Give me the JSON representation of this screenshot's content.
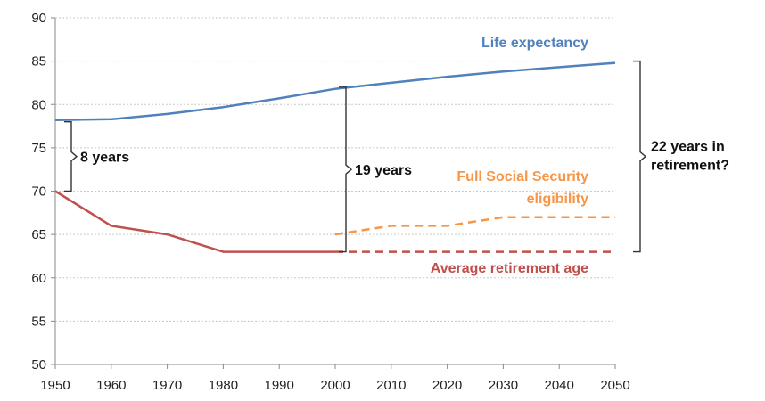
{
  "chart_data": {
    "type": "line",
    "title": "",
    "xlabel": "",
    "ylabel": "",
    "xlim": [
      1950,
      2050
    ],
    "ylim": [
      50,
      90
    ],
    "x_ticks": [
      1950,
      1960,
      1970,
      1980,
      1990,
      2000,
      2010,
      2020,
      2030,
      2040,
      2050
    ],
    "y_ticks": [
      50,
      55,
      60,
      65,
      70,
      75,
      80,
      85,
      90
    ],
    "grid": "horizontal dashed",
    "series": [
      {
        "name": "Life expectancy",
        "color": "#4f81bd",
        "style": "solid",
        "x": [
          1950,
          1960,
          1970,
          1980,
          1990,
          2000,
          2010,
          2020,
          2030,
          2040,
          2050
        ],
        "y": [
          78.2,
          78.3,
          78.9,
          79.7,
          80.7,
          81.8,
          82.5,
          83.2,
          83.8,
          84.3,
          84.8
        ]
      },
      {
        "name": "Average retirement age",
        "color": "#c0504d",
        "style": "solid",
        "x": [
          1950,
          1960,
          1970,
          1980,
          1990,
          2000
        ],
        "y": [
          70,
          66,
          65,
          63,
          63,
          63
        ]
      },
      {
        "name": "Average retirement age",
        "color": "#c0504d",
        "style": "dashed",
        "x": [
          2000,
          2050
        ],
        "y": [
          63,
          63
        ]
      },
      {
        "name": "Full Social Security eligibility",
        "color": "#f79646",
        "style": "dashed",
        "x": [
          2000,
          2010,
          2020,
          2030,
          2040,
          2050
        ],
        "y": [
          65,
          66,
          66,
          67,
          67,
          67
        ]
      }
    ],
    "series_labels": {
      "life_expectancy": "Life expectancy",
      "ss_line1": "Full Social Security",
      "ss_line2": "eligibility",
      "retirement": "Average retirement age"
    },
    "annotations": [
      {
        "text": "8 years",
        "x": 1950,
        "y_from": 70,
        "y_to": 78
      },
      {
        "text": "19 years",
        "x": 2000,
        "y_from": 63,
        "y_to": 82
      },
      {
        "text_line1": "22 years in",
        "text_line2": "retirement?",
        "x": 2050,
        "y_from": 63,
        "y_to": 85
      }
    ]
  }
}
